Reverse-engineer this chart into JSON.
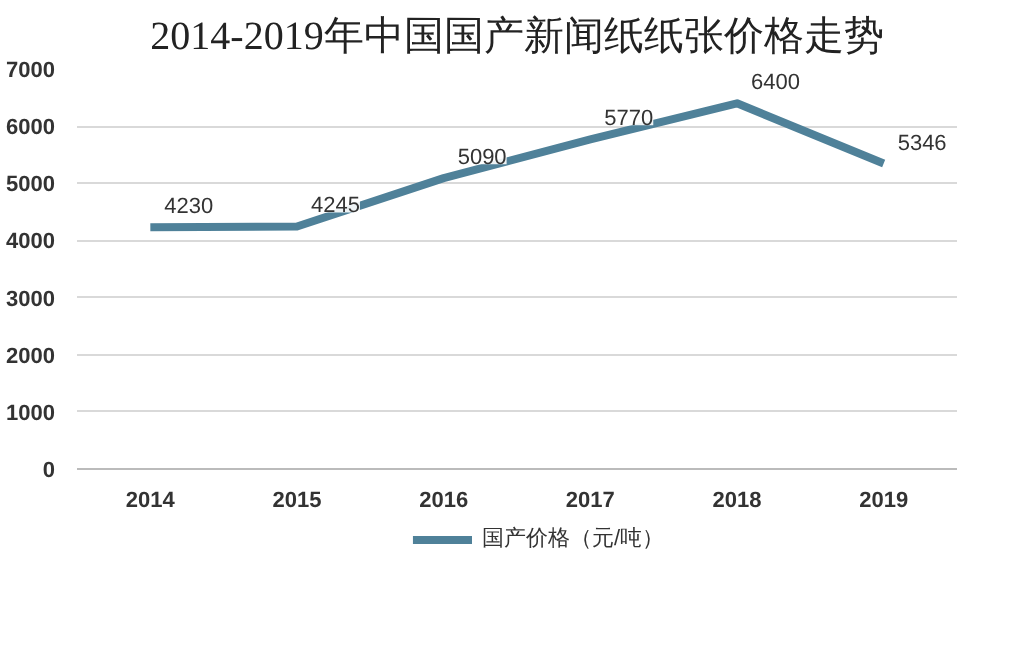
{
  "chart_data": {
    "type": "line",
    "title": "2014-2019年中国国产新闻纸纸张价格走势",
    "categories": [
      "2014",
      "2015",
      "2016",
      "2017",
      "2018",
      "2019"
    ],
    "series": [
      {
        "name": "国产价格（元/吨）",
        "color": "#4f8199",
        "values": [
          4230,
          4245,
          5090,
          5770,
          6400,
          5346
        ]
      }
    ],
    "ylim": [
      0,
      7000
    ],
    "yticks": [
      0,
      1000,
      2000,
      3000,
      4000,
      5000,
      6000,
      7000
    ],
    "grid": "y",
    "legend": "bottom",
    "data_labels": true,
    "marker": "none",
    "line_style": "solid"
  }
}
